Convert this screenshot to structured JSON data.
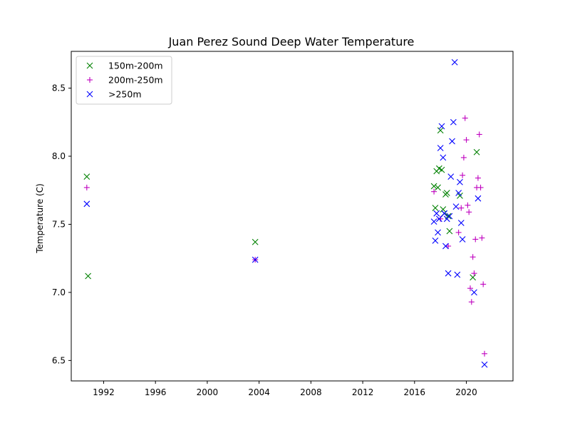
{
  "chart_data": {
    "type": "scatter",
    "title": "Juan Perez Sound Deep Water Temperature",
    "xlabel": "",
    "ylabel": "Temperature (C)",
    "xlim": [
      1989.5,
      2023.6
    ],
    "ylim": [
      6.35,
      8.77
    ],
    "xticks": [
      1992,
      1996,
      2000,
      2004,
      2008,
      2012,
      2016,
      2020
    ],
    "yticks": [
      6.5,
      7.0,
      7.5,
      8.0,
      8.5
    ],
    "ytick_labels": [
      "6.5",
      "7.0",
      "7.5",
      "8.0",
      "8.5"
    ],
    "grid": false,
    "legend_position": "top-left",
    "series": [
      {
        "name": "150m-200m",
        "marker": "x",
        "color": "#008000",
        "points": [
          {
            "x": 1990.7,
            "y": 7.85
          },
          {
            "x": 1990.8,
            "y": 7.12
          },
          {
            "x": 2003.7,
            "y": 7.37
          },
          {
            "x": 2017.5,
            "y": 7.78
          },
          {
            "x": 2017.6,
            "y": 7.62
          },
          {
            "x": 2017.7,
            "y": 7.89
          },
          {
            "x": 2017.8,
            "y": 7.77
          },
          {
            "x": 2017.9,
            "y": 7.91
          },
          {
            "x": 2018.0,
            "y": 8.19
          },
          {
            "x": 2018.1,
            "y": 7.9
          },
          {
            "x": 2018.2,
            "y": 7.61
          },
          {
            "x": 2018.3,
            "y": 7.58
          },
          {
            "x": 2018.4,
            "y": 7.72
          },
          {
            "x": 2018.5,
            "y": 7.73
          },
          {
            "x": 2018.6,
            "y": 7.56
          },
          {
            "x": 2018.7,
            "y": 7.45
          },
          {
            "x": 2019.5,
            "y": 7.71
          },
          {
            "x": 2020.5,
            "y": 7.11
          },
          {
            "x": 2020.8,
            "y": 8.03
          }
        ]
      },
      {
        "name": "200m-250m",
        "marker": "+",
        "color": "#bf00bf",
        "points": [
          {
            "x": 1990.7,
            "y": 7.77
          },
          {
            "x": 2003.7,
            "y": 7.24
          },
          {
            "x": 2017.5,
            "y": 7.74
          },
          {
            "x": 2018.0,
            "y": 7.54
          },
          {
            "x": 2018.6,
            "y": 7.34
          },
          {
            "x": 2019.4,
            "y": 7.44
          },
          {
            "x": 2019.6,
            "y": 7.62
          },
          {
            "x": 2019.7,
            "y": 7.86
          },
          {
            "x": 2019.8,
            "y": 7.99
          },
          {
            "x": 2019.9,
            "y": 8.28
          },
          {
            "x": 2020.0,
            "y": 8.12
          },
          {
            "x": 2020.1,
            "y": 7.64
          },
          {
            "x": 2020.2,
            "y": 7.59
          },
          {
            "x": 2020.3,
            "y": 7.03
          },
          {
            "x": 2020.4,
            "y": 6.93
          },
          {
            "x": 2020.5,
            "y": 7.26
          },
          {
            "x": 2020.6,
            "y": 7.14
          },
          {
            "x": 2020.7,
            "y": 7.39
          },
          {
            "x": 2020.8,
            "y": 7.77
          },
          {
            "x": 2020.9,
            "y": 7.84
          },
          {
            "x": 2021.0,
            "y": 8.16
          },
          {
            "x": 2021.1,
            "y": 7.77
          },
          {
            "x": 2021.2,
            "y": 7.4
          },
          {
            "x": 2021.3,
            "y": 7.06
          },
          {
            "x": 2021.4,
            "y": 6.55
          }
        ]
      },
      {
        "name": ">250m",
        "marker": "x",
        "color": "#0000ff",
        "points": [
          {
            "x": 1990.7,
            "y": 7.65
          },
          {
            "x": 2003.7,
            "y": 7.24
          },
          {
            "x": 2017.5,
            "y": 7.52
          },
          {
            "x": 2017.6,
            "y": 7.38
          },
          {
            "x": 2017.7,
            "y": 7.58
          },
          {
            "x": 2017.8,
            "y": 7.44
          },
          {
            "x": 2017.9,
            "y": 7.54
          },
          {
            "x": 2018.0,
            "y": 8.06
          },
          {
            "x": 2018.1,
            "y": 8.22
          },
          {
            "x": 2018.2,
            "y": 7.99
          },
          {
            "x": 2018.3,
            "y": 7.58
          },
          {
            "x": 2018.4,
            "y": 7.34
          },
          {
            "x": 2018.5,
            "y": 7.54
          },
          {
            "x": 2018.6,
            "y": 7.14
          },
          {
            "x": 2018.7,
            "y": 7.56
          },
          {
            "x": 2018.8,
            "y": 7.85
          },
          {
            "x": 2018.9,
            "y": 8.11
          },
          {
            "x": 2019.0,
            "y": 8.25
          },
          {
            "x": 2019.1,
            "y": 8.69
          },
          {
            "x": 2019.2,
            "y": 7.63
          },
          {
            "x": 2019.3,
            "y": 7.13
          },
          {
            "x": 2019.4,
            "y": 7.73
          },
          {
            "x": 2019.5,
            "y": 7.81
          },
          {
            "x": 2019.6,
            "y": 7.51
          },
          {
            "x": 2019.7,
            "y": 7.39
          },
          {
            "x": 2020.6,
            "y": 7.0
          },
          {
            "x": 2020.9,
            "y": 7.69
          },
          {
            "x": 2021.4,
            "y": 6.47
          }
        ]
      }
    ]
  }
}
